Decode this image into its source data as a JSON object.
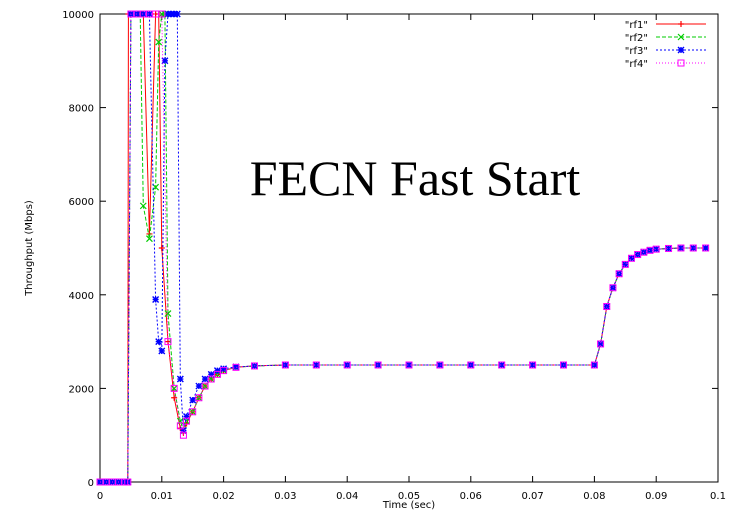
{
  "chart_data": {
    "type": "line",
    "title": "FECN Fast Start",
    "xlabel": "Time (sec)",
    "ylabel": "Throughput (Mbps)",
    "xlim": [
      0,
      0.1
    ],
    "ylim": [
      0,
      10000
    ],
    "xticks": [
      "0",
      "0.01",
      "0.02",
      "0.03",
      "0.04",
      "0.05",
      "0.06",
      "0.07",
      "0.08",
      "0.09",
      "0.1"
    ],
    "yticks": [
      "0",
      "2000",
      "4000",
      "6000",
      "8000",
      "10000"
    ],
    "legend_position": "top-right",
    "grid": false,
    "series": [
      {
        "name": "\"rf1\"",
        "color": "#ff0000",
        "marker": "plus",
        "x": [
          0,
          0.001,
          0.002,
          0.003,
          0.004,
          0.0045,
          0.0046,
          0.005,
          0.006,
          0.0065,
          0.007,
          0.008,
          0.009,
          0.0095,
          0.01,
          0.011,
          0.012,
          0.013,
          0.0135,
          0.014,
          0.015,
          0.016,
          0.017,
          0.018,
          0.019,
          0.02,
          0.022,
          0.025,
          0.03,
          0.035,
          0.04,
          0.045,
          0.05,
          0.055,
          0.06,
          0.065,
          0.07,
          0.075,
          0.08,
          0.081,
          0.082,
          0.083,
          0.084,
          0.085,
          0.086,
          0.087,
          0.088,
          0.089,
          0.09,
          0.092,
          0.094,
          0.096,
          0.098
        ],
        "y": [
          0,
          0,
          0,
          0,
          0,
          0,
          10000,
          10000,
          10000,
          10000,
          10000,
          5300,
          10000,
          10000,
          5000,
          3000,
          1800,
          1150,
          1050,
          1250,
          1500,
          1800,
          2050,
          2200,
          2300,
          2380,
          2450,
          2480,
          2500,
          2500,
          2500,
          2500,
          2500,
          2500,
          2500,
          2500,
          2500,
          2500,
          2500,
          2950,
          3750,
          4150,
          4450,
          4650,
          4780,
          4860,
          4910,
          4950,
          4975,
          4990,
          5000,
          5000,
          5000
        ]
      },
      {
        "name": "\"rf2\"",
        "color": "#00cc00",
        "marker": "x",
        "x": [
          0,
          0.001,
          0.002,
          0.003,
          0.004,
          0.0045,
          0.005,
          0.006,
          0.0065,
          0.007,
          0.008,
          0.009,
          0.0095,
          0.01,
          0.0105,
          0.011,
          0.012,
          0.013,
          0.0135,
          0.014,
          0.015,
          0.016,
          0.017,
          0.018,
          0.019,
          0.02,
          0.022,
          0.025,
          0.03,
          0.035,
          0.04,
          0.045,
          0.05,
          0.055,
          0.06,
          0.065,
          0.07,
          0.075,
          0.08,
          0.081,
          0.082,
          0.083,
          0.084,
          0.085,
          0.086,
          0.087,
          0.088,
          0.089,
          0.09,
          0.092,
          0.094,
          0.096,
          0.098
        ],
        "y": [
          0,
          0,
          0,
          0,
          0,
          0,
          10000,
          10000,
          10000,
          5900,
          5200,
          6300,
          9400,
          10000,
          10000,
          3600,
          2000,
          1300,
          1100,
          1300,
          1500,
          1800,
          2050,
          2200,
          2300,
          2380,
          2450,
          2480,
          2500,
          2500,
          2500,
          2500,
          2500,
          2500,
          2500,
          2500,
          2500,
          2500,
          2500,
          2950,
          3750,
          4150,
          4450,
          4650,
          4780,
          4860,
          4910,
          4950,
          4975,
          4990,
          5000,
          5000,
          5000
        ]
      },
      {
        "name": "\"rf3\"",
        "color": "#0000ff",
        "marker": "star",
        "x": [
          0,
          0.001,
          0.002,
          0.003,
          0.004,
          0.0045,
          0.005,
          0.006,
          0.007,
          0.008,
          0.009,
          0.0095,
          0.01,
          0.0105,
          0.011,
          0.0115,
          0.012,
          0.0125,
          0.013,
          0.0135,
          0.014,
          0.015,
          0.016,
          0.017,
          0.018,
          0.019,
          0.02,
          0.022,
          0.025,
          0.03,
          0.035,
          0.04,
          0.045,
          0.05,
          0.055,
          0.06,
          0.065,
          0.07,
          0.075,
          0.08,
          0.081,
          0.082,
          0.083,
          0.084,
          0.085,
          0.086,
          0.087,
          0.088,
          0.089,
          0.09,
          0.092,
          0.094,
          0.096,
          0.098
        ],
        "y": [
          0,
          0,
          0,
          0,
          0,
          0,
          10000,
          10000,
          10000,
          10000,
          3900,
          3000,
          2800,
          9000,
          10000,
          10000,
          10000,
          10000,
          2200,
          1100,
          1400,
          1750,
          2050,
          2200,
          2300,
          2380,
          2420,
          2460,
          2480,
          2500,
          2500,
          2500,
          2500,
          2500,
          2500,
          2500,
          2500,
          2500,
          2500,
          2500,
          2950,
          3750,
          4150,
          4450,
          4650,
          4780,
          4860,
          4910,
          4950,
          4975,
          4990,
          5000,
          5000,
          5000
        ]
      },
      {
        "name": "\"rf4\"",
        "color": "#ff00ff",
        "marker": "square",
        "x": [
          0,
          0.001,
          0.002,
          0.003,
          0.004,
          0.0045,
          0.005,
          0.006,
          0.007,
          0.008,
          0.009,
          0.01,
          0.011,
          0.012,
          0.013,
          0.0135,
          0.014,
          0.015,
          0.016,
          0.017,
          0.018,
          0.019,
          0.02,
          0.022,
          0.025,
          0.03,
          0.035,
          0.04,
          0.045,
          0.05,
          0.055,
          0.06,
          0.065,
          0.07,
          0.075,
          0.08,
          0.081,
          0.082,
          0.083,
          0.084,
          0.085,
          0.086,
          0.087,
          0.088,
          0.089,
          0.09,
          0.092,
          0.094,
          0.096,
          0.098
        ],
        "y": [
          0,
          0,
          0,
          0,
          0,
          0,
          10000,
          10000,
          10000,
          10000,
          10000,
          10000,
          3000,
          2000,
          1200,
          1000,
          1300,
          1500,
          1800,
          2050,
          2200,
          2300,
          2380,
          2450,
          2480,
          2500,
          2500,
          2500,
          2500,
          2500,
          2500,
          2500,
          2500,
          2500,
          2500,
          2500,
          2950,
          3750,
          4150,
          4450,
          4650,
          4780,
          4860,
          4910,
          4950,
          4975,
          4990,
          5000,
          5000,
          5000
        ]
      }
    ]
  }
}
